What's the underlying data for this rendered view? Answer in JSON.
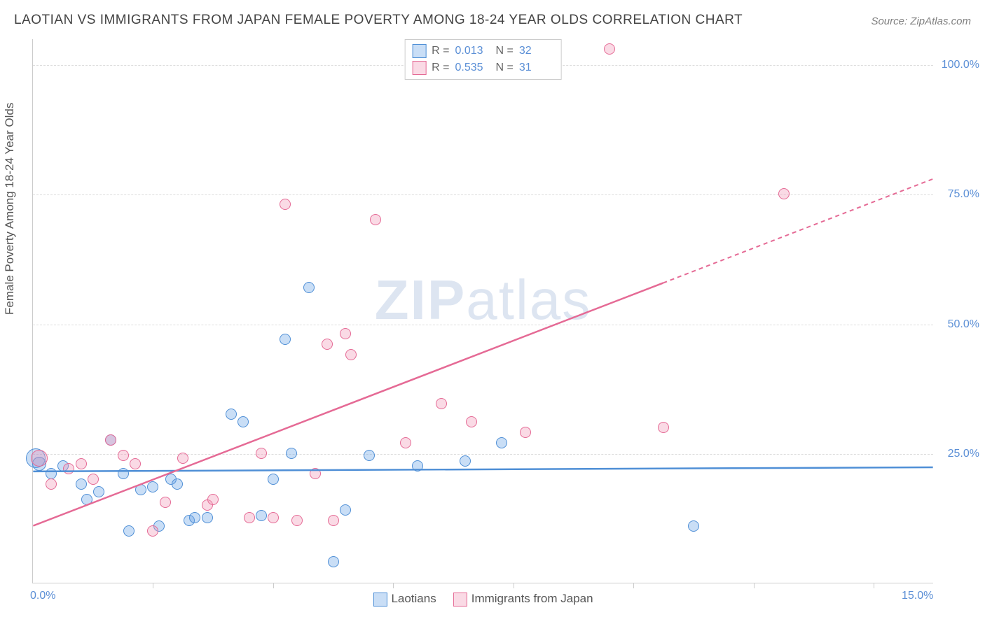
{
  "title": "LAOTIAN VS IMMIGRANTS FROM JAPAN FEMALE POVERTY AMONG 18-24 YEAR OLDS CORRELATION CHART",
  "source": "Source: ZipAtlas.com",
  "ylabel": "Female Poverty Among 18-24 Year Olds",
  "watermark_bold": "ZIP",
  "watermark_light": "atlas",
  "chart": {
    "type": "scatter",
    "xlim": [
      0,
      15
    ],
    "ylim": [
      0,
      105
    ],
    "x_tick_labels": {
      "0": "0.0%",
      "15": "15.0%"
    },
    "x_ticks": [
      2,
      4,
      6,
      8,
      10,
      12,
      14
    ],
    "y_gridlines": [
      25,
      50,
      75,
      100
    ],
    "y_tick_labels": {
      "25": "25.0%",
      "50": "50.0%",
      "75": "75.0%",
      "100": "100.0%"
    },
    "background_color": "#ffffff",
    "grid_color": "#dddddd",
    "axis_color": "#cccccc",
    "tick_label_color": "#5b8fd6",
    "title_color": "#444444",
    "title_fontsize": 19,
    "label_fontsize": 17,
    "tick_fontsize": 16,
    "marker_radius": 8,
    "marker_border_width": 1.5,
    "marker_fill_opacity": 0.35
  },
  "series": [
    {
      "name": "Laotians",
      "color_fill": "rgba(100,160,230,0.35)",
      "color_stroke": "#4f8fd6",
      "R": "0.013",
      "N": "32",
      "trend": {
        "x1": 0,
        "y1": 21.5,
        "x2": 15,
        "y2": 22.3,
        "solid_until_x": 15
      },
      "points": [
        [
          0.05,
          24,
          14
        ],
        [
          0.1,
          23,
          10
        ],
        [
          0.3,
          21,
          8
        ],
        [
          0.5,
          22.5,
          8
        ],
        [
          0.8,
          19,
          8
        ],
        [
          0.9,
          16,
          8
        ],
        [
          1.1,
          17.5,
          8
        ],
        [
          1.3,
          27.5,
          8
        ],
        [
          1.5,
          21,
          8
        ],
        [
          1.6,
          10,
          8
        ],
        [
          1.8,
          18,
          8
        ],
        [
          2.0,
          18.5,
          8
        ],
        [
          2.1,
          11,
          8
        ],
        [
          2.3,
          20,
          8
        ],
        [
          2.4,
          19,
          8
        ],
        [
          2.6,
          12,
          8
        ],
        [
          2.7,
          12.5,
          8
        ],
        [
          2.9,
          12.5,
          8
        ],
        [
          3.3,
          32.5,
          8
        ],
        [
          3.5,
          31,
          8
        ],
        [
          3.8,
          13,
          8
        ],
        [
          4.0,
          20,
          8
        ],
        [
          4.2,
          47,
          8
        ],
        [
          4.3,
          25,
          8
        ],
        [
          4.6,
          57,
          8
        ],
        [
          5.0,
          4,
          8
        ],
        [
          5.2,
          14,
          8
        ],
        [
          5.6,
          24.5,
          8
        ],
        [
          6.4,
          22.5,
          8
        ],
        [
          7.2,
          23.5,
          8
        ],
        [
          7.8,
          27,
          8
        ],
        [
          11.0,
          11,
          8
        ]
      ]
    },
    {
      "name": "Immigrants from Japan",
      "color_fill": "rgba(240,150,180,0.35)",
      "color_stroke": "#e56a95",
      "R": "0.535",
      "N": "31",
      "trend": {
        "x1": 0,
        "y1": 11,
        "x2": 15,
        "y2": 78,
        "solid_until_x": 10.5
      },
      "points": [
        [
          0.1,
          24,
          12
        ],
        [
          0.3,
          19,
          8
        ],
        [
          0.6,
          22,
          8
        ],
        [
          0.8,
          23,
          8
        ],
        [
          1.0,
          20,
          8
        ],
        [
          1.3,
          27.5,
          8
        ],
        [
          1.5,
          24.5,
          8
        ],
        [
          1.7,
          23,
          8
        ],
        [
          2.0,
          10,
          8
        ],
        [
          2.2,
          15.5,
          8
        ],
        [
          2.5,
          24,
          8
        ],
        [
          2.9,
          15,
          8
        ],
        [
          3.0,
          16,
          8
        ],
        [
          3.6,
          12.5,
          8
        ],
        [
          3.8,
          25,
          8
        ],
        [
          4.0,
          12.5,
          8
        ],
        [
          4.2,
          73,
          8
        ],
        [
          4.4,
          12,
          8
        ],
        [
          4.7,
          21,
          8
        ],
        [
          4.9,
          46,
          8
        ],
        [
          5.0,
          12,
          8
        ],
        [
          5.2,
          48,
          8
        ],
        [
          5.3,
          44,
          8
        ],
        [
          5.7,
          70,
          8
        ],
        [
          6.2,
          27,
          8
        ],
        [
          6.8,
          34.5,
          8
        ],
        [
          7.3,
          31,
          8
        ],
        [
          8.2,
          29,
          8
        ],
        [
          9.6,
          103,
          8
        ],
        [
          10.5,
          30,
          8
        ],
        [
          12.5,
          75,
          8
        ]
      ]
    }
  ],
  "legend_top_labels": {
    "R": "R =",
    "N": "N ="
  },
  "legend_bottom": [
    "Laotians",
    "Immigrants from Japan"
  ]
}
